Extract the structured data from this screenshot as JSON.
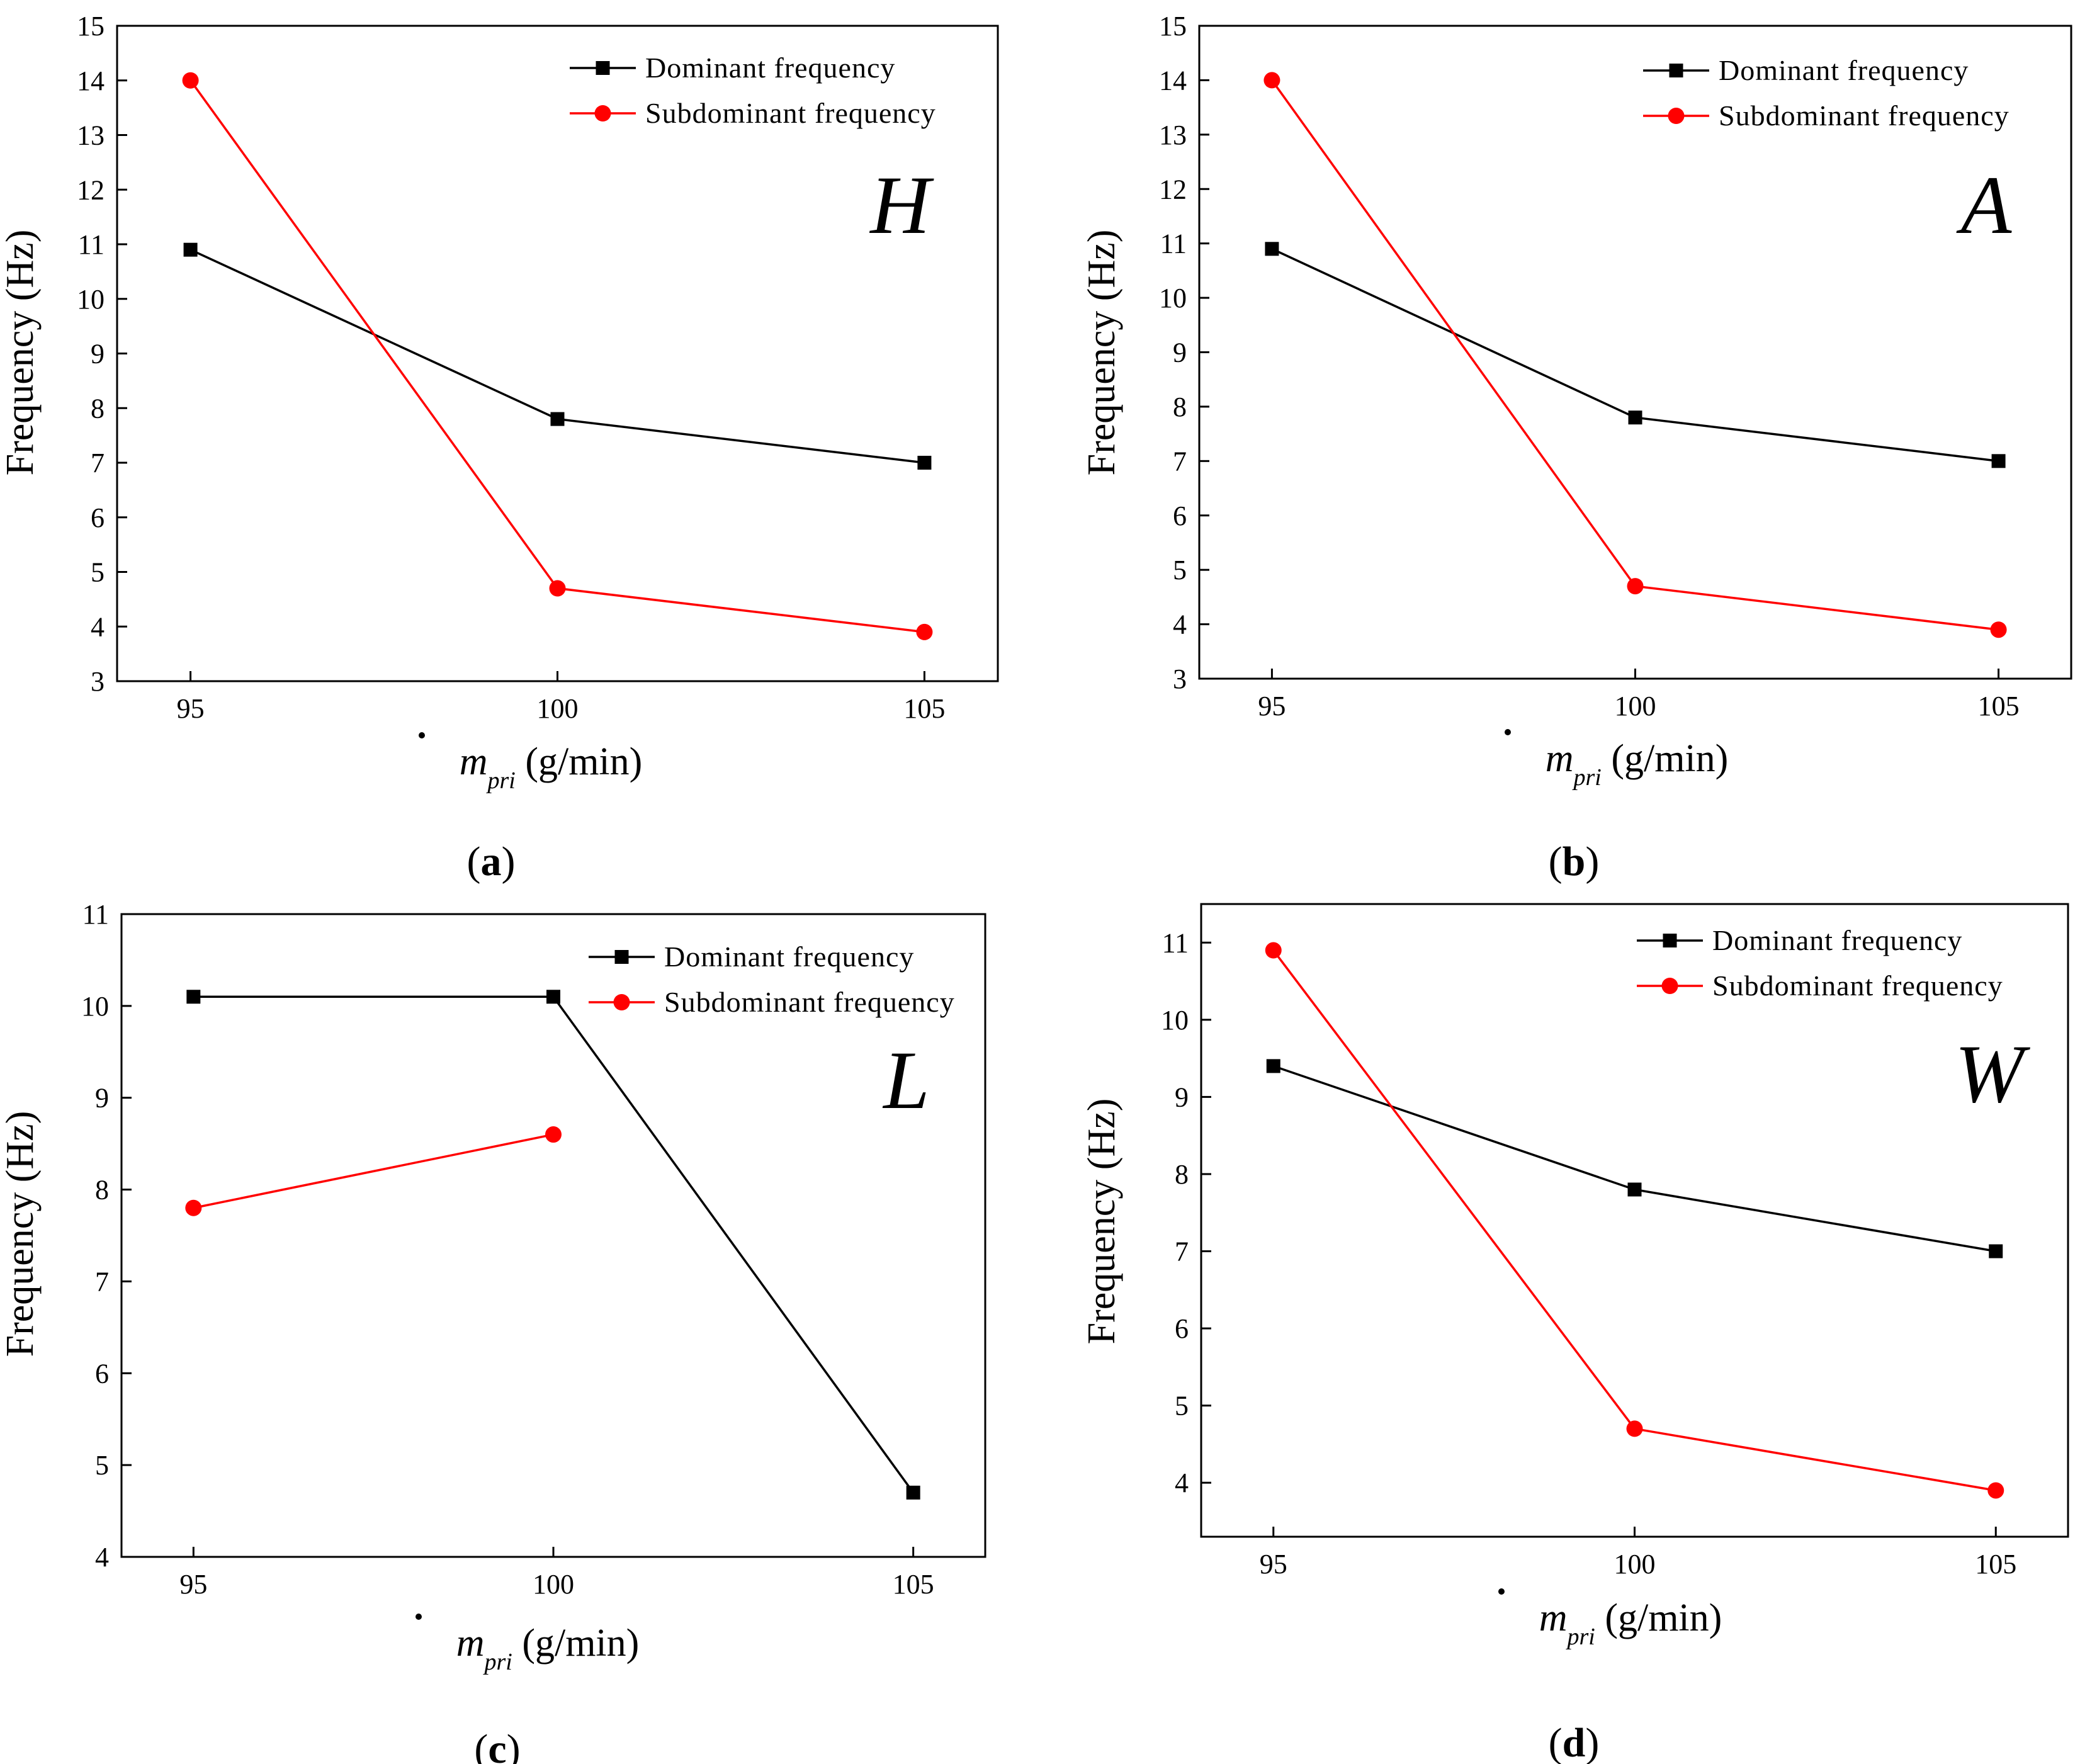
{
  "figure": {
    "y_axis_title": "Frequency (Hz)",
    "x_axis_symbol": "m",
    "x_axis_subscript": "pri",
    "x_axis_unit": " (g/min)"
  },
  "colors": {
    "dominant": "#000000",
    "subdominant": "#ff0000",
    "axis": "#000000"
  },
  "chart_data": [
    {
      "type": "line",
      "panel": "a",
      "caption_open": "(",
      "caption_letter": "a",
      "caption_close": ")",
      "annotation": "H",
      "xlabel": "m pri (g/min)",
      "ylabel": "Frequency (Hz)",
      "x": [
        95,
        100,
        105
      ],
      "xlim": [
        94,
        106
      ],
      "ylim": [
        3,
        15
      ],
      "yticks": [
        3,
        4,
        5,
        6,
        7,
        8,
        9,
        10,
        11,
        12,
        13,
        14,
        15
      ],
      "xticks": [
        95,
        100,
        105
      ],
      "legend_position": "top-right",
      "series": [
        {
          "name": "Dominant frequency",
          "values": [
            10.9,
            7.8,
            7.0
          ]
        },
        {
          "name": "Subdominant frequency",
          "values": [
            14.0,
            4.7,
            3.9
          ]
        }
      ]
    },
    {
      "type": "line",
      "panel": "b",
      "caption_open": "(",
      "caption_letter": "b",
      "caption_close": ")",
      "annotation": "A",
      "xlabel": "m pri (g/min)",
      "ylabel": "Frequency (Hz)",
      "x": [
        95,
        100,
        105
      ],
      "xlim": [
        94,
        106
      ],
      "ylim": [
        3,
        15
      ],
      "yticks": [
        3,
        4,
        5,
        6,
        7,
        8,
        9,
        10,
        11,
        12,
        13,
        14,
        15
      ],
      "xticks": [
        95,
        100,
        105
      ],
      "legend_position": "top-right",
      "series": [
        {
          "name": "Dominant frequency",
          "values": [
            10.9,
            7.8,
            7.0
          ]
        },
        {
          "name": "Subdominant frequency",
          "values": [
            14.0,
            4.7,
            3.9
          ]
        }
      ]
    },
    {
      "type": "line",
      "panel": "c",
      "caption_open": "(",
      "caption_letter": "c",
      "caption_close": ")",
      "annotation": "L",
      "xlabel": "m pri (g/min)",
      "ylabel": "Frequency (Hz)",
      "x": [
        95,
        100,
        105
      ],
      "xlim": [
        94,
        106
      ],
      "ylim": [
        4,
        11
      ],
      "yticks": [
        4,
        5,
        6,
        7,
        8,
        9,
        10,
        11
      ],
      "xticks": [
        95,
        100,
        105
      ],
      "legend_position": "top-right",
      "series": [
        {
          "name": "Dominant frequency",
          "values": [
            10.1,
            10.1,
            4.7
          ]
        },
        {
          "name": "Subdominant frequency",
          "values": [
            7.8,
            8.6,
            null
          ]
        }
      ]
    },
    {
      "type": "line",
      "panel": "d",
      "caption_open": "(",
      "caption_letter": "d",
      "caption_close": ")",
      "annotation": "W",
      "xlabel": "m pri (g/min)",
      "ylabel": "Frequency (Hz)",
      "x": [
        95,
        100,
        105
      ],
      "xlim": [
        94,
        106
      ],
      "ylim": [
        3.3,
        11.5
      ],
      "yticks": [
        4,
        5,
        6,
        7,
        8,
        9,
        10,
        11
      ],
      "xticks": [
        95,
        100,
        105
      ],
      "legend_position": "top-right",
      "series": [
        {
          "name": "Dominant frequency",
          "values": [
            9.4,
            7.8,
            7.0
          ]
        },
        {
          "name": "Subdominant frequency",
          "values": [
            10.9,
            4.7,
            3.9
          ]
        }
      ]
    }
  ]
}
